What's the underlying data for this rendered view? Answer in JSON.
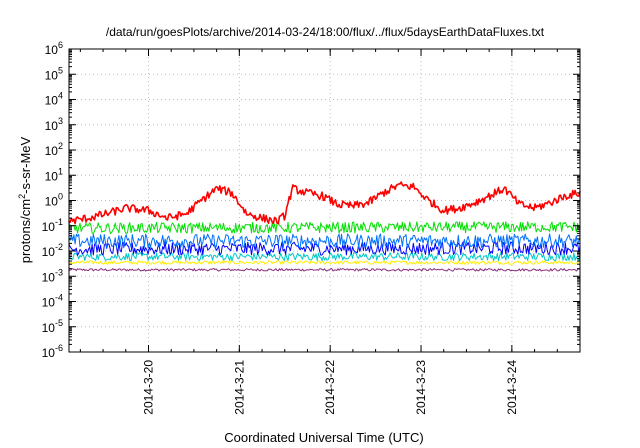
{
  "chart_data": {
    "type": "line",
    "title": "/data/run/goesPlots/archive/2014-03-24/18:00/flux/../flux/5daysEarthDataFluxes.txt",
    "xlabel": "Coordinated Universal Time (UTC)",
    "ylabel": {
      "base": "protons/cm",
      "sup": "2",
      "rest": "-s-sr-MeV"
    },
    "y_scale": "log",
    "ylim": [
      1e-06,
      1000000.0
    ],
    "y_ticks": [
      {
        "value": 1e-06,
        "base": "10",
        "exp": "-6"
      },
      {
        "value": 1e-05,
        "base": "10",
        "exp": "-5"
      },
      {
        "value": 0.0001,
        "base": "10",
        "exp": "-4"
      },
      {
        "value": 0.001,
        "base": "10",
        "exp": "-3"
      },
      {
        "value": 0.01,
        "base": "10",
        "exp": "-2"
      },
      {
        "value": 0.1,
        "base": "10",
        "exp": "-1"
      },
      {
        "value": 1,
        "base": "10",
        "exp": "0"
      },
      {
        "value": 10,
        "base": "10",
        "exp": "1"
      },
      {
        "value": 100,
        "base": "10",
        "exp": "2"
      },
      {
        "value": 1000,
        "base": "10",
        "exp": "3"
      },
      {
        "value": 10000,
        "base": "10",
        "exp": "4"
      },
      {
        "value": 100000,
        "base": "10",
        "exp": "5"
      },
      {
        "value": 1000000,
        "base": "10",
        "exp": "6"
      }
    ],
    "xlim": [
      "2014-03-19 03:00",
      "2014-03-24 18:00"
    ],
    "x_ticks": [
      {
        "value": "2014-03-20 00:00",
        "label": "2014-3-20"
      },
      {
        "value": "2014-03-21 00:00",
        "label": "2014-3-21"
      },
      {
        "value": "2014-03-22 00:00",
        "label": "2014-3-22"
      },
      {
        "value": "2014-03-23 00:00",
        "label": "2014-3-23"
      },
      {
        "value": "2014-03-24 00:00",
        "label": "2014-3-24"
      }
    ],
    "grid": true,
    "legend": "none",
    "series": [
      {
        "color": "#ff0000",
        "x": [
          "2014-03-19 03:00",
          "2014-03-19 08:00",
          "2014-03-19 13:00",
          "2014-03-19 18:00",
          "2014-03-20 00:00",
          "2014-03-20 05:00",
          "2014-03-20 10:00",
          "2014-03-20 14:00",
          "2014-03-20 18:00",
          "2014-03-20 22:00",
          "2014-03-21 02:00",
          "2014-03-21 06:00",
          "2014-03-21 10:00",
          "2014-03-21 12:00",
          "2014-03-21 14:00",
          "2014-03-21 18:00",
          "2014-03-21 22:00",
          "2014-03-22 02:00",
          "2014-03-22 06:00",
          "2014-03-22 10:00",
          "2014-03-22 14:00",
          "2014-03-22 18:00",
          "2014-03-22 22:00",
          "2014-03-23 02:00",
          "2014-03-23 06:00",
          "2014-03-23 10:00",
          "2014-03-23 14:00",
          "2014-03-23 18:00",
          "2014-03-23 22:00",
          "2014-03-24 02:00",
          "2014-03-24 06:00",
          "2014-03-24 10:00",
          "2014-03-24 14:00",
          "2014-03-24 18:00"
        ],
        "y": [
          0.15,
          0.2,
          0.3,
          0.5,
          0.4,
          0.2,
          0.3,
          1.0,
          3.0,
          2.0,
          0.3,
          0.2,
          0.15,
          0.25,
          3.0,
          2.0,
          1.5,
          0.7,
          0.6,
          0.8,
          2.0,
          4.0,
          3.5,
          1.0,
          0.4,
          0.5,
          0.8,
          1.5,
          3.0,
          0.7,
          0.5,
          0.8,
          1.5,
          2.0
        ]
      },
      {
        "color": "#00e000",
        "x": [
          "2014-03-19 03:00",
          "2014-03-24 18:00"
        ],
        "y": [
          0.08,
          0.09
        ]
      },
      {
        "color": "#0070ff",
        "x": [
          "2014-03-19 03:00",
          "2014-03-24 18:00"
        ],
        "y": [
          0.025,
          0.025
        ]
      },
      {
        "color": "#0000ff",
        "x": [
          "2014-03-19 03:00",
          "2014-03-24 18:00"
        ],
        "y": [
          0.012,
          0.013
        ]
      },
      {
        "color": "#00c8c8",
        "x": [
          "2014-03-19 03:00",
          "2014-03-24 18:00"
        ],
        "y": [
          0.006,
          0.006
        ]
      },
      {
        "color": "#ffee00",
        "x": [
          "2014-03-19 03:00",
          "2014-03-24 18:00"
        ],
        "y": [
          0.0035,
          0.0035
        ]
      },
      {
        "color": "#8b2c7a",
        "x": [
          "2014-03-19 03:00",
          "2014-03-24 18:00"
        ],
        "y": [
          0.0018,
          0.0018
        ]
      }
    ]
  }
}
